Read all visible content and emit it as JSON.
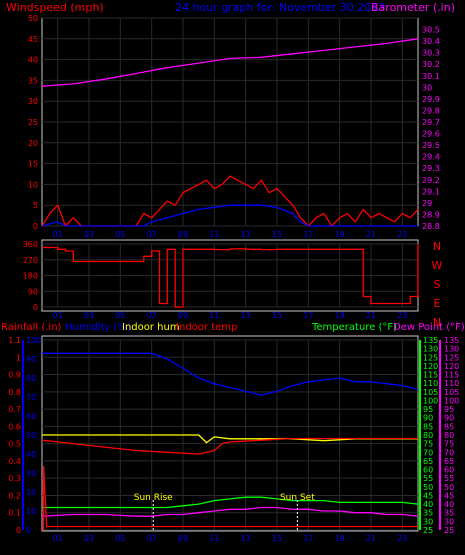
{
  "chart_data": [
    {
      "type": "line",
      "panel": "wind-barometer",
      "title": "24 hour graph for: November 30 2013",
      "ylabel_left": "Windspeed (mph)",
      "ylabel_right": "Barometer (.in)",
      "ylim_left": [
        0,
        50
      ],
      "yticks_left": [
        "0",
        "5",
        "10",
        "15",
        "20",
        "25",
        "30",
        "35",
        "40",
        "45",
        "50"
      ],
      "ylim_right": [
        28.8,
        30.6
      ],
      "yticks_right": [
        "28.8",
        "28.9",
        "29",
        "29.1",
        "29.2",
        "29.3",
        "29.4",
        "29.5",
        "29.6",
        "29.7",
        "29.8",
        "29.9",
        "30",
        "30.1",
        "30.2",
        "30.3",
        "30.4",
        "30.5"
      ],
      "xticks": [
        "01",
        "03",
        "05",
        "07",
        "09",
        "11",
        "13",
        "15",
        "17",
        "19",
        "21",
        "23"
      ],
      "series": [
        {
          "name": "Windspeed (mph)",
          "color": "#ff0000",
          "axis": "left",
          "x": [
            0,
            0.5,
            1,
            1.5,
            2,
            2.5,
            3,
            3.5,
            4,
            4.5,
            5,
            5.5,
            6,
            6.5,
            7,
            7.5,
            8,
            8.5,
            9,
            9.5,
            10,
            10.5,
            11,
            11.5,
            12,
            12.5,
            13,
            13.5,
            14,
            14.5,
            15,
            15.5,
            16,
            16.5,
            17,
            17.5,
            18,
            18.5,
            19,
            19.5,
            20,
            20.5,
            21,
            21.5,
            22,
            22.5,
            23,
            23.5,
            24
          ],
          "y": [
            0,
            3,
            5,
            0,
            2,
            0,
            0,
            0,
            0,
            0,
            0,
            0,
            0,
            3,
            2,
            4,
            6,
            5,
            8,
            9,
            10,
            11,
            9,
            10,
            12,
            11,
            10,
            9,
            11,
            8,
            9,
            7,
            5,
            2,
            0,
            2,
            3,
            0,
            2,
            3,
            1,
            4,
            2,
            3,
            2,
            1,
            3,
            2,
            4
          ]
        },
        {
          "name": "Gust",
          "color": "#0000ff",
          "axis": "left",
          "x": [
            0,
            1,
            1.5,
            2,
            6.5,
            7,
            8,
            9,
            10,
            11,
            12,
            13,
            14,
            15,
            16,
            16.5,
            17,
            24
          ],
          "y": [
            0,
            1,
            0,
            0,
            0,
            1,
            2,
            3,
            4,
            4.5,
            5,
            5,
            5,
            4.5,
            3,
            1,
            0,
            0
          ]
        },
        {
          "name": "Barometer (.in)",
          "color": "#ff00ff",
          "axis": "right",
          "x": [
            0,
            2,
            4,
            6,
            8,
            10,
            12,
            14,
            16,
            18,
            20,
            22,
            24
          ],
          "y": [
            30.01,
            30.03,
            30.07,
            30.12,
            30.17,
            30.21,
            30.25,
            30.26,
            30.29,
            30.32,
            30.35,
            30.38,
            30.42
          ]
        }
      ]
    },
    {
      "type": "line",
      "panel": "wind-direction",
      "ylim": [
        0,
        360
      ],
      "yticks": [
        "0",
        "90",
        "180",
        "270",
        "360"
      ],
      "compass_labels": [
        "N",
        "W",
        "S",
        "E",
        "N"
      ],
      "xticks": [
        "01",
        "03",
        "05",
        "07",
        "09",
        "11",
        "13",
        "15",
        "17",
        "19",
        "21",
        "23"
      ],
      "series": [
        {
          "name": "Wind direction",
          "color": "#ff0000",
          "x": [
            0,
            1,
            1.5,
            2,
            3,
            4,
            5,
            6,
            6.5,
            7,
            7.5,
            8,
            8.5,
            9,
            10,
            11,
            12,
            13,
            14,
            15,
            16,
            17,
            18,
            19,
            20,
            20.5,
            21,
            22,
            23,
            23.5,
            24
          ],
          "y": [
            340,
            330,
            320,
            260,
            260,
            260,
            260,
            260,
            290,
            320,
            20,
            330,
            0,
            330,
            330,
            328,
            332,
            330,
            328,
            330,
            330,
            330,
            330,
            330,
            330,
            60,
            20,
            20,
            20,
            60,
            360
          ]
        }
      ]
    },
    {
      "type": "line",
      "panel": "rain-humidity-temperature",
      "labels_left": [
        "Rainfall (.in)",
        "Humidity (%)",
        "Indoor hum",
        "Indoor temp"
      ],
      "labels_right": [
        "Temperature (°F)",
        "Dew Point (°F)"
      ],
      "ylim_rain": [
        0,
        1.1
      ],
      "yticks_rain": [
        "0",
        "0.1",
        "0.2",
        "0.3",
        "0.4",
        "0.5",
        "0.6",
        "0.7",
        "0.8",
        "0.9",
        "1",
        "1.1"
      ],
      "ylim_humidity": [
        0,
        100
      ],
      "yticks_humidity": [
        "0",
        "10",
        "20",
        "30",
        "40",
        "50",
        "60",
        "70",
        "80",
        "90",
        "100"
      ],
      "ylim_temp": [
        25,
        135
      ],
      "yticks_temp": [
        "25",
        "30",
        "35",
        "40",
        "45",
        "50",
        "55",
        "60",
        "65",
        "70",
        "75",
        "80",
        "85",
        "90",
        "95",
        "100",
        "105",
        "110",
        "115",
        "120",
        "125",
        "130",
        "135"
      ],
      "xticks": [
        "01",
        "03",
        "05",
        "07",
        "09",
        "11",
        "13",
        "15",
        "17",
        "19",
        "21",
        "23"
      ],
      "annotations": [
        {
          "label": "Sun Rise",
          "x": 7.1
        },
        {
          "label": "Sun Set",
          "x": 16.3
        }
      ],
      "series": [
        {
          "name": "Humidity (%)",
          "color": "#0000ff",
          "axis": "humidity",
          "x": [
            0,
            2,
            4,
            6,
            7,
            8,
            9,
            10,
            11,
            12,
            13,
            14,
            15,
            16,
            17,
            18,
            19,
            20,
            21,
            22,
            23,
            24
          ],
          "y": [
            93,
            93,
            93,
            93,
            93,
            90,
            85,
            80,
            77,
            75,
            73,
            71,
            73,
            76,
            78,
            79,
            80,
            78,
            78,
            77,
            76,
            74
          ]
        },
        {
          "name": "Indoor hum",
          "color": "#ffff00",
          "axis": "humidity",
          "x": [
            0,
            2,
            4,
            6,
            8,
            10,
            10.5,
            11,
            12,
            14,
            16,
            18,
            20,
            22,
            24
          ],
          "y": [
            50,
            50,
            50,
            50,
            50,
            50,
            46,
            49,
            48,
            48,
            48,
            47,
            48,
            48,
            48
          ]
        },
        {
          "name": "Indoor temp",
          "color": "#ff0000",
          "axis": "temp",
          "x": [
            0,
            2,
            4,
            6,
            8,
            10,
            10.5,
            11,
            11.5,
            12,
            14,
            16,
            18,
            20,
            22,
            24
          ],
          "y": [
            77,
            75,
            73,
            71,
            70,
            69,
            70,
            71,
            75,
            76,
            77,
            78,
            78,
            78,
            78,
            78
          ]
        },
        {
          "name": "Temperature (°F)",
          "color": "#00ff00",
          "axis": "temp",
          "x": [
            0,
            2,
            4,
            6,
            7,
            8,
            9,
            10,
            11,
            12,
            13,
            14,
            15,
            16,
            17,
            18,
            19,
            20,
            21,
            22,
            23,
            24
          ],
          "y": [
            38,
            38,
            38,
            38,
            38,
            38,
            39,
            40,
            42,
            43,
            44,
            44,
            43,
            42,
            42,
            42,
            41,
            41,
            41,
            41,
            41,
            40
          ]
        },
        {
          "name": "Dew Point (°F)",
          "color": "#ff00ff",
          "axis": "temp",
          "x": [
            0,
            2,
            4,
            6,
            7,
            8,
            9,
            10,
            11,
            12,
            13,
            14,
            15,
            16,
            17,
            18,
            19,
            20,
            21,
            22,
            23,
            24
          ],
          "y": [
            33,
            34,
            34,
            33,
            33,
            34,
            34,
            35,
            36,
            37,
            37,
            38,
            38,
            37,
            37,
            36,
            36,
            35,
            35,
            34,
            34,
            33
          ]
        },
        {
          "name": "Rainfall (.in)",
          "color": "#ff0000",
          "axis": "rain",
          "x": [
            0,
            0.1,
            0.1,
            0.3,
            24
          ],
          "y": [
            0,
            0,
            0.37,
            0.02,
            0.02
          ]
        }
      ]
    }
  ]
}
